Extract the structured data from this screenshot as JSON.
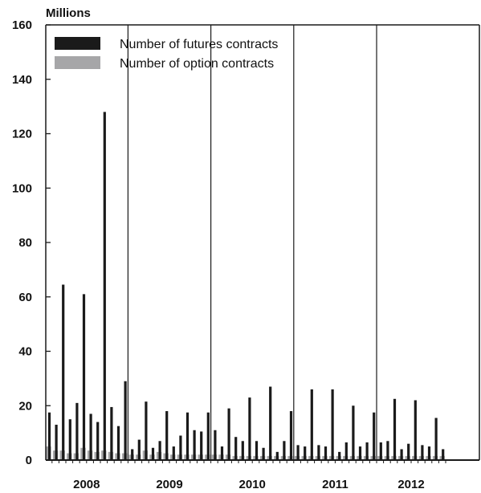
{
  "chart_data": {
    "type": "bar",
    "unit_label": "Millions",
    "xlabel": "",
    "ylabel": "",
    "ylim": [
      0,
      160
    ],
    "yticks": [
      0,
      20,
      40,
      60,
      80,
      100,
      120,
      140,
      160
    ],
    "grid": false,
    "legend_position": "top-left",
    "year_labels": [
      "2008",
      "2009",
      "2010",
      "2011",
      "2012"
    ],
    "months_per_year": 12,
    "series": [
      {
        "name": "Number of futures contracts",
        "color": "#1a1a1a",
        "values": [
          17.5,
          13,
          64.5,
          15,
          21,
          61,
          17,
          14,
          128,
          19.5,
          12.5,
          29,
          4,
          7.5,
          21.5,
          4.5,
          7,
          18,
          5,
          9,
          17.5,
          11,
          10.5,
          17.5,
          11,
          5,
          19,
          8.5,
          7,
          23,
          7,
          4.5,
          27,
          3,
          7,
          18,
          5.5,
          5,
          26,
          5.5,
          5,
          26,
          3,
          6.5,
          20,
          5,
          6.5,
          17.5,
          6.5,
          7,
          22.5,
          4,
          6,
          22,
          5.5,
          5,
          15.5,
          4
        ]
      },
      {
        "name": "Number of option contracts",
        "color": "#a6a6a8",
        "values": [
          5,
          3.5,
          3.5,
          2.5,
          2.5,
          4.5,
          3.5,
          3,
          3.5,
          3,
          2.5,
          2.5,
          2,
          2,
          3.5,
          2,
          3,
          2.5,
          2,
          2,
          2,
          2,
          2,
          2,
          2,
          2,
          2,
          1.5,
          1.5,
          1.5,
          1.5,
          1.5,
          1.5,
          1.5,
          1.5,
          1.5,
          1.5,
          1.5,
          1.5,
          1.5,
          1.5,
          1.5,
          1.5,
          1.5,
          1.5,
          1.5,
          1.5,
          1.5,
          1.5,
          1.5,
          1.5,
          1.5,
          1.5,
          1.5,
          1.5,
          1.5,
          1.5,
          1.5
        ]
      }
    ]
  }
}
